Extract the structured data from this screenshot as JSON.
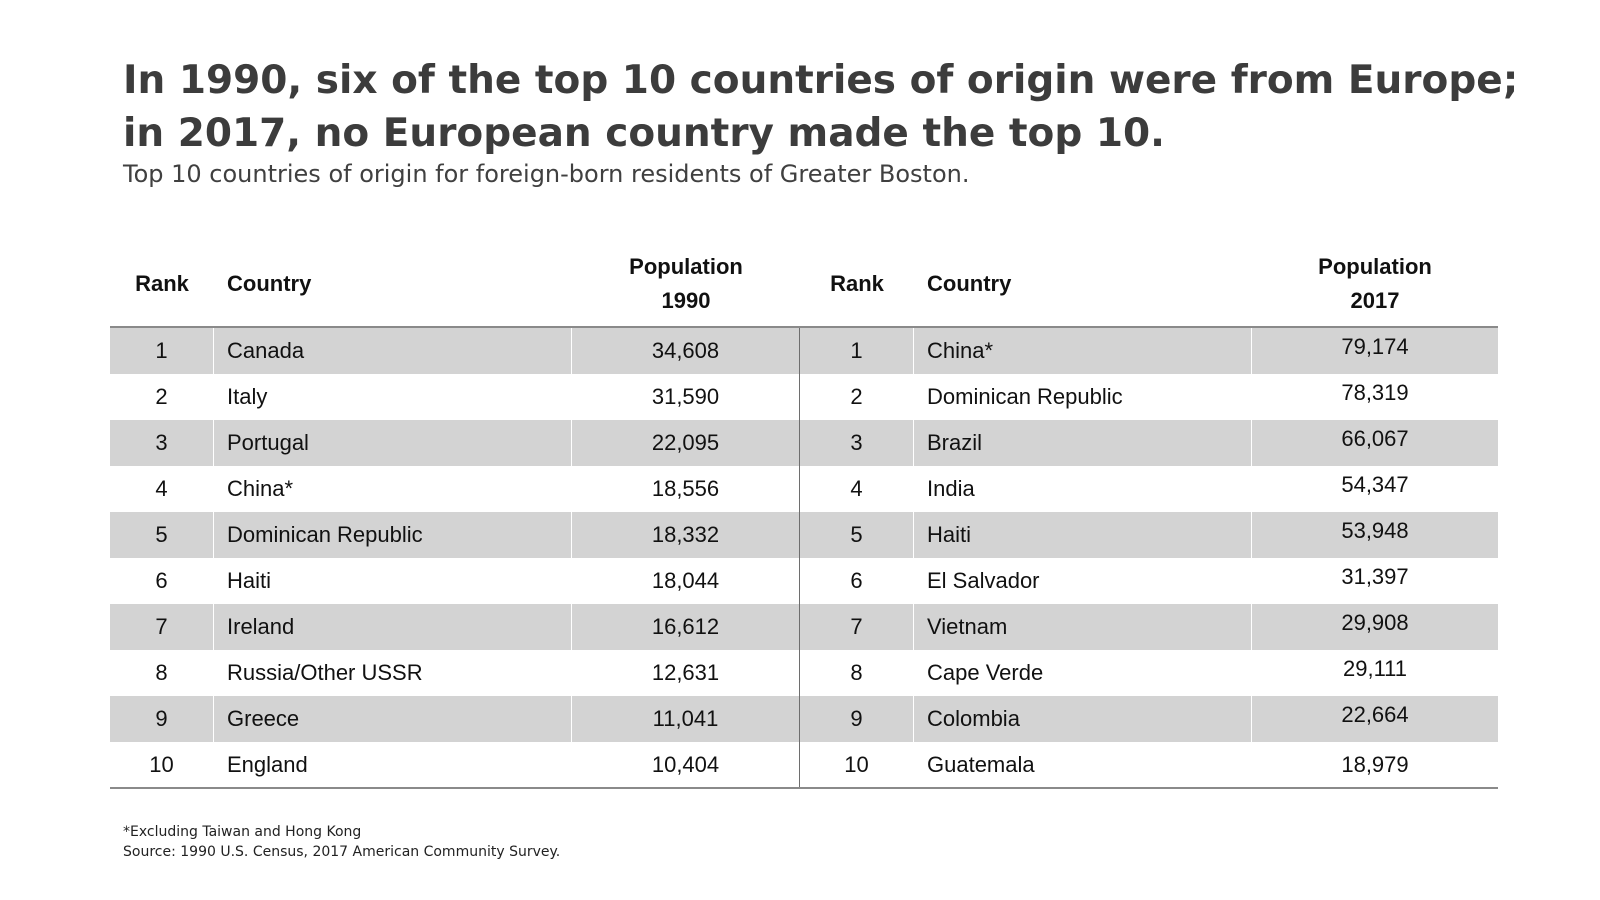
{
  "title_line1": "In 1990, six of the top 10 countries of origin were from Europe;",
  "title_line2": "in 2017, no European country made the top 10.",
  "subtitle": "Top 10 countries of origin for foreign-born residents of Greater Boston.",
  "table": {
    "headers": {
      "rank": "Rank",
      "country": "Country",
      "pop1990_line1": "Population",
      "pop1990_line2": "1990",
      "rank2": "Rank",
      "country2": "Country",
      "pop2017_line1": "Population",
      "pop2017_line2": "2017"
    },
    "rows": [
      {
        "rank": "1",
        "country": "Canada",
        "pop1990": "34,608",
        "rank2": "1",
        "country2": "China*",
        "pop2017": "79,174"
      },
      {
        "rank": "2",
        "country": "Italy",
        "pop1990": "31,590",
        "rank2": "2",
        "country2": "Dominican Republic",
        "pop2017": "78,319"
      },
      {
        "rank": "3",
        "country": "Portugal",
        "pop1990": "22,095",
        "rank2": "3",
        "country2": "Brazil",
        "pop2017": "66,067"
      },
      {
        "rank": "4",
        "country": "China*",
        "pop1990": "18,556",
        "rank2": "4",
        "country2": "India",
        "pop2017": "54,347"
      },
      {
        "rank": "5",
        "country": "Dominican Republic",
        "pop1990": "18,332",
        "rank2": "5",
        "country2": "Haiti",
        "pop2017": "53,948"
      },
      {
        "rank": "6",
        "country": "Haiti",
        "pop1990": "18,044",
        "rank2": "6",
        "country2": "El Salvador",
        "pop2017": "31,397"
      },
      {
        "rank": "7",
        "country": "Ireland",
        "pop1990": "16,612",
        "rank2": "7",
        "country2": "Vietnam",
        "pop2017": "29,908"
      },
      {
        "rank": "8",
        "country": "Russia/Other USSR",
        "pop1990": "12,631",
        "rank2": "8",
        "country2": "Cape Verde",
        "pop2017": "29,111"
      },
      {
        "rank": "9",
        "country": "Greece",
        "pop1990": "11,041",
        "rank2": "9",
        "country2": "Colombia",
        "pop2017": "22,664"
      },
      {
        "rank": "10",
        "country": "England",
        "pop1990": "10,404",
        "rank2": "10",
        "country2": "Guatemala",
        "pop2017": "18,979"
      }
    ]
  },
  "footnote": "*Excluding Taiwan and Hong Kong",
  "source": "Source: 1990 U.S. Census, 2017 American Community Survey.",
  "colors": {
    "title": "#3c3c3c",
    "row_shade": "#d3d3d3",
    "rule": "#8a8a8a"
  }
}
